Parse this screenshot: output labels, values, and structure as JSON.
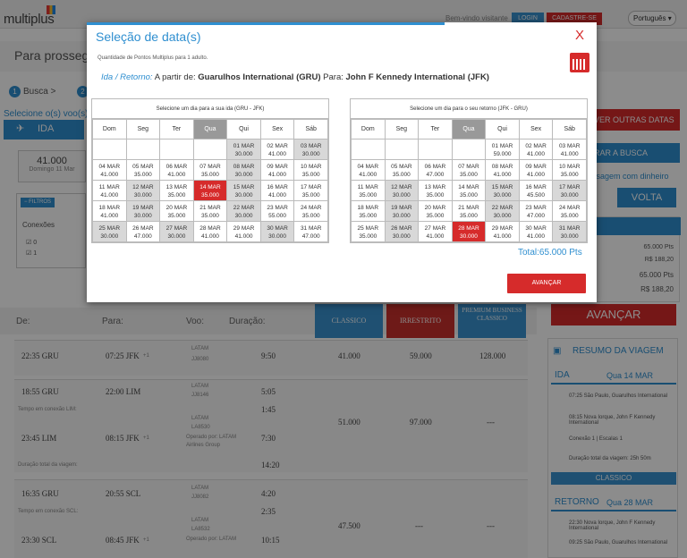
{
  "page": {
    "logo": "multiplus",
    "welcome": "Bem-vindo visitante",
    "login": "LOGIN",
    "signup": "CADASTRE-SE",
    "language": "Português",
    "proceed_text": "Para prosseguir",
    "step1": "Busca",
    "select_label": "Selecione o(s) voo(s):",
    "ida_tab": "IDA",
    "date_card": {
      "date": "41.000",
      "day": "Domingo 11 Mar"
    },
    "filters": {
      "button": "FILTROS",
      "title": "Conexões",
      "opt0": "0",
      "opt1": "1"
    },
    "right": {
      "ver_outras": "VER OUTRAS DATAS",
      "alterar": "RAR A BUSCA",
      "link": "ssagem com dinheiro",
      "volta": "VOLTA",
      "p1": "65.000 Pts",
      "p2": "R$ 188,20",
      "p3": "65.000 Pts",
      "p4": "R$ 188,20",
      "avancar": "AVANÇAR"
    },
    "table": {
      "headers": {
        "de": "De:",
        "para": "Para:",
        "voo": "Voo:",
        "duracao": "Duração:"
      },
      "classico": "CLASSICO",
      "irrestrito": "IRRESTRITO",
      "premium": "PREMIUM BUSINESS CLASSICO",
      "rows": [
        {
          "dep": "22:35 GRU",
          "arr": "07:25 JFK",
          "plus": "+1",
          "flight": "JJ8080",
          "dur": "9:50",
          "c": "41.000",
          "i": "59.000",
          "p": "128.000"
        },
        {
          "dep": "18:55 GRU",
          "arr": "22:00 LIM",
          "flight": "JJ8146",
          "dur": "5:05",
          "conn": "Tempo em conexão LIM:",
          "conn_time": "1:45"
        },
        {
          "dep": "23:45 LIM",
          "arr": "08:15 JFK",
          "plus": "+1",
          "flight": "LA8530",
          "op": "Operado por: LATAM Airlines Group",
          "dur": "7:30",
          "c": "51.000",
          "i": "97.000",
          "p": "---",
          "total_label": "Duração total da viagem:",
          "total": "14:20"
        },
        {
          "dep": "16:35 GRU",
          "arr": "20:55 SCL",
          "flight": "JJ8082",
          "dur": "4:20",
          "conn": "Tempo em conexão SCL:",
          "conn_time": "2:35"
        },
        {
          "dep": "23:30 SCL",
          "arr": "08:45 JFK",
          "plus": "+1",
          "flight": "LA8532",
          "op": "Operado por: LATAM",
          "dur": "10:15",
          "c": "47.500",
          "i": "---",
          "p": "---"
        }
      ],
      "latam": "LATAM"
    },
    "resumo": {
      "title": "RESUMO DA VIAGEM",
      "ida": "IDA",
      "ida_date": "Qua 14 MAR",
      "ida_dep": "07:25 São Paulo, Guarulhos International",
      "ida_arr": "08:15 Nova Iorque, John F Kennedy International",
      "conexao": "Conexão 1  |  Escalas 1",
      "duracao": "Duração total da viagem: 25h 50m",
      "classico": "CLASSICO",
      "retorno": "RETORNO",
      "ret_date": "Qua 28 MAR",
      "ret_dep": "22:30 Nova Iorque, John F Kennedy International",
      "ret_arr": "09:25 São Paulo, Guarulhos International"
    }
  },
  "modal": {
    "title": "Seleção de data(s)",
    "close": "X",
    "subtitle": "Quantidade de Pontos Multiplus para 1 adulto.",
    "route_type": "Ida / Retorno:",
    "from_label": "A partir de:",
    "from": "Guarulhos International (GRU)",
    "to_label": "Para:",
    "to": "John F Kennedy International (JFK)",
    "weekdays": [
      "Dom",
      "Seg",
      "Ter",
      "Qua",
      "Qui",
      "Sex",
      "Sáb"
    ],
    "outbound": {
      "header": "Selecione um dia para a sua ida (GRU - JFK)",
      "weeks": [
        [
          null,
          null,
          null,
          null,
          {
            "d": "01 MAR",
            "p": "30.000",
            "s": "g"
          },
          {
            "d": "02 MAR",
            "p": "41.000",
            "s": "w"
          },
          {
            "d": "03 MAR",
            "p": "30.000",
            "s": "g"
          }
        ],
        [
          {
            "d": "04 MAR",
            "p": "41.000",
            "s": "w"
          },
          {
            "d": "05 MAR",
            "p": "35.000",
            "s": "w"
          },
          {
            "d": "06 MAR",
            "p": "41.000",
            "s": "w"
          },
          {
            "d": "07 MAR",
            "p": "35.000",
            "s": "w"
          },
          {
            "d": "08 MAR",
            "p": "30.000",
            "s": "g"
          },
          {
            "d": "09 MAR",
            "p": "41.000",
            "s": "w"
          },
          {
            "d": "10 MAR",
            "p": "35.000",
            "s": "w"
          }
        ],
        [
          {
            "d": "11 MAR",
            "p": "41.000",
            "s": "w"
          },
          {
            "d": "12 MAR",
            "p": "30.000",
            "s": "g"
          },
          {
            "d": "13 MAR",
            "p": "35.000",
            "s": "w"
          },
          {
            "d": "14 MAR",
            "p": "35.000",
            "s": "sel"
          },
          {
            "d": "15 MAR",
            "p": "30.000",
            "s": "g"
          },
          {
            "d": "16 MAR",
            "p": "41.000",
            "s": "w"
          },
          {
            "d": "17 MAR",
            "p": "35.000",
            "s": "w"
          }
        ],
        [
          {
            "d": "18 MAR",
            "p": "41.000",
            "s": "w"
          },
          {
            "d": "19 MAR",
            "p": "30.000",
            "s": "g"
          },
          {
            "d": "20 MAR",
            "p": "35.000",
            "s": "w"
          },
          {
            "d": "21 MAR",
            "p": "35.000",
            "s": "w"
          },
          {
            "d": "22 MAR",
            "p": "30.000",
            "s": "g"
          },
          {
            "d": "23 MAR",
            "p": "55.000",
            "s": "w"
          },
          {
            "d": "24 MAR",
            "p": "35.000",
            "s": "w"
          }
        ],
        [
          {
            "d": "25 MAR",
            "p": "30.000",
            "s": "g"
          },
          {
            "d": "26 MAR",
            "p": "47.000",
            "s": "w"
          },
          {
            "d": "27 MAR",
            "p": "30.000",
            "s": "g"
          },
          {
            "d": "28 MAR",
            "p": "41.000",
            "s": "w"
          },
          {
            "d": "29 MAR",
            "p": "41.000",
            "s": "w"
          },
          {
            "d": "30 MAR",
            "p": "30.000",
            "s": "g"
          },
          {
            "d": "31 MAR",
            "p": "47.000",
            "s": "w"
          }
        ]
      ]
    },
    "return": {
      "header": "Selecione um dia para o seu retorno (JFK - GRU)",
      "weeks": [
        [
          null,
          null,
          null,
          null,
          {
            "d": "01 MAR",
            "p": "59.000",
            "s": "w"
          },
          {
            "d": "02 MAR",
            "p": "41.000",
            "s": "w"
          },
          {
            "d": "03 MAR",
            "p": "41.000",
            "s": "w"
          }
        ],
        [
          {
            "d": "04 MAR",
            "p": "41.000",
            "s": "w"
          },
          {
            "d": "05 MAR",
            "p": "35.000",
            "s": "w"
          },
          {
            "d": "06 MAR",
            "p": "47.000",
            "s": "w"
          },
          {
            "d": "07 MAR",
            "p": "35.000",
            "s": "w"
          },
          {
            "d": "08 MAR",
            "p": "41.000",
            "s": "w"
          },
          {
            "d": "09 MAR",
            "p": "41.000",
            "s": "w"
          },
          {
            "d": "10 MAR",
            "p": "35.000",
            "s": "w"
          }
        ],
        [
          {
            "d": "11 MAR",
            "p": "35.000",
            "s": "w"
          },
          {
            "d": "12 MAR",
            "p": "30.000",
            "s": "g"
          },
          {
            "d": "13 MAR",
            "p": "35.000",
            "s": "w"
          },
          {
            "d": "14 MAR",
            "p": "35.000",
            "s": "w"
          },
          {
            "d": "15 MAR",
            "p": "30.000",
            "s": "g"
          },
          {
            "d": "16 MAR",
            "p": "45.500",
            "s": "w"
          },
          {
            "d": "17 MAR",
            "p": "30.000",
            "s": "g"
          }
        ],
        [
          {
            "d": "18 MAR",
            "p": "35.000",
            "s": "w"
          },
          {
            "d": "19 MAR",
            "p": "30.000",
            "s": "g"
          },
          {
            "d": "20 MAR",
            "p": "35.000",
            "s": "w"
          },
          {
            "d": "21 MAR",
            "p": "35.000",
            "s": "w"
          },
          {
            "d": "22 MAR",
            "p": "30.000",
            "s": "g"
          },
          {
            "d": "23 MAR",
            "p": "47.000",
            "s": "w"
          },
          {
            "d": "24 MAR",
            "p": "35.000",
            "s": "w"
          }
        ],
        [
          {
            "d": "25 MAR",
            "p": "35.000",
            "s": "w"
          },
          {
            "d": "26 MAR",
            "p": "30.000",
            "s": "g"
          },
          {
            "d": "27 MAR",
            "p": "41.000",
            "s": "w"
          },
          {
            "d": "28 MAR",
            "p": "30.000",
            "s": "sel"
          },
          {
            "d": "29 MAR",
            "p": "41.000",
            "s": "w"
          },
          {
            "d": "30 MAR",
            "p": "41.000",
            "s": "w"
          },
          {
            "d": "31 MAR",
            "p": "30.000",
            "s": "g"
          }
        ]
      ]
    },
    "total": "Total:65.000 Pts",
    "advance": "AVANÇAR",
    "colors": {
      "accent": "#2f8fd0",
      "red": "#d62b2b",
      "grey": "#d8d8d8",
      "highlight": "#999999"
    }
  }
}
